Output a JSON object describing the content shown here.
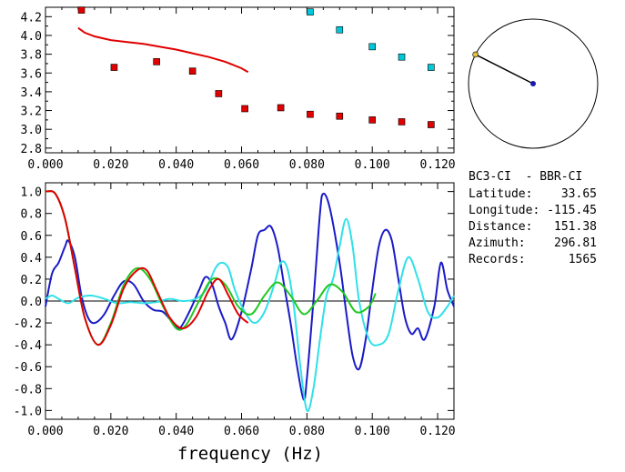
{
  "station": {
    "pair": "BC3-CI  - BBR-CI",
    "lines": [
      {
        "label": "Latitude:",
        "value": "33.65"
      },
      {
        "label": "Longitude:",
        "value": "-115.45"
      },
      {
        "label": "Distance:",
        "value": "151.38"
      },
      {
        "label": "Azimuth:",
        "value": "296.81"
      },
      {
        "label": "Records:",
        "value": "1565"
      }
    ]
  },
  "compass": {
    "azimuth_deg": 296.81,
    "center_color": "#1a1aa8",
    "tip_color": "#e0c040"
  },
  "chart_data": [
    {
      "type": "scatter",
      "title": "",
      "xlabel": "",
      "ylabel": "",
      "xlim": [
        0.0,
        0.125
      ],
      "ylim": [
        2.75,
        4.3
      ],
      "x_ticks": [
        "0.000",
        "0.020",
        "0.040",
        "0.060",
        "0.080",
        "0.100",
        "0.120"
      ],
      "y_ticks": [
        "2.8",
        "3.0",
        "3.2",
        "3.4",
        "3.6",
        "3.8",
        "4.0",
        "4.2"
      ],
      "series": [
        {
          "color": "#e00000",
          "kind": "markers",
          "x": [
            0.011,
            0.021,
            0.034,
            0.045,
            0.053,
            0.061,
            0.072,
            0.081,
            0.09,
            0.1,
            0.109,
            0.118
          ],
          "y": [
            4.27,
            3.66,
            3.72,
            3.62,
            3.38,
            3.22,
            3.23,
            3.16,
            3.14,
            3.1,
            3.08,
            3.05
          ]
        },
        {
          "color": "#00c8d8",
          "kind": "markers",
          "x": [
            0.081,
            0.09,
            0.1,
            0.109,
            0.118
          ],
          "y": [
            4.25,
            4.06,
            3.88,
            3.77,
            3.66
          ]
        },
        {
          "color": "#e00000",
          "kind": "line",
          "x": [
            0.01,
            0.012,
            0.015,
            0.02,
            0.025,
            0.03,
            0.035,
            0.04,
            0.045,
            0.05,
            0.055,
            0.06,
            0.062
          ],
          "y": [
            4.08,
            4.03,
            3.99,
            3.95,
            3.93,
            3.91,
            3.88,
            3.85,
            3.81,
            3.77,
            3.72,
            3.65,
            3.61
          ]
        }
      ]
    },
    {
      "type": "line",
      "title": "",
      "xlabel": "frequency (Hz)",
      "ylabel": "",
      "xlim": [
        0.0,
        0.125
      ],
      "ylim": [
        -1.08,
        1.08
      ],
      "x_ticks": [
        "0.000",
        "0.020",
        "0.040",
        "0.060",
        "0.080",
        "0.100",
        "0.120"
      ],
      "y_ticks": [
        "1.0",
        "0.8",
        "0.6",
        "0.4",
        "0.2",
        "0.0",
        "-0.2",
        "-0.4",
        "-0.6",
        "-0.8",
        "-1.0"
      ],
      "series": [
        {
          "color": "#1a1ac8",
          "x": [
            0.0,
            0.002,
            0.004,
            0.006,
            0.007,
            0.009,
            0.011,
            0.013,
            0.015,
            0.018,
            0.021,
            0.024,
            0.027,
            0.03,
            0.033,
            0.036,
            0.039,
            0.041,
            0.044,
            0.047,
            0.049,
            0.051,
            0.053,
            0.055,
            0.057,
            0.06,
            0.063,
            0.065,
            0.067,
            0.069,
            0.071,
            0.073,
            0.075,
            0.077,
            0.079,
            0.08,
            0.082,
            0.084,
            0.085,
            0.087,
            0.09,
            0.092,
            0.094,
            0.096,
            0.098,
            0.1,
            0.102,
            0.104,
            0.106,
            0.108,
            0.11,
            0.112,
            0.114,
            0.116,
            0.119,
            0.121,
            0.123,
            0.125
          ],
          "y": [
            -0.05,
            0.25,
            0.35,
            0.5,
            0.55,
            0.4,
            0.05,
            -0.15,
            -0.2,
            -0.12,
            0.05,
            0.18,
            0.15,
            0.0,
            -0.08,
            -0.1,
            -0.2,
            -0.25,
            -0.1,
            0.1,
            0.22,
            0.15,
            -0.05,
            -0.2,
            -0.35,
            -0.1,
            0.3,
            0.6,
            0.65,
            0.68,
            0.5,
            0.15,
            -0.2,
            -0.6,
            -0.9,
            -0.7,
            0.0,
            0.8,
            0.98,
            0.85,
            0.35,
            -0.1,
            -0.5,
            -0.62,
            -0.35,
            0.1,
            0.5,
            0.65,
            0.55,
            0.2,
            -0.15,
            -0.3,
            -0.25,
            -0.35,
            -0.05,
            0.35,
            0.1,
            -0.05
          ]
        },
        {
          "color": "#30e0e8",
          "x": [
            0.0,
            0.002,
            0.004,
            0.007,
            0.01,
            0.014,
            0.018,
            0.022,
            0.026,
            0.03,
            0.034,
            0.038,
            0.042,
            0.046,
            0.049,
            0.052,
            0.054,
            0.056,
            0.058,
            0.061,
            0.064,
            0.067,
            0.07,
            0.072,
            0.074,
            0.076,
            0.078,
            0.08,
            0.082,
            0.084,
            0.086,
            0.088,
            0.09,
            0.092,
            0.094,
            0.096,
            0.099,
            0.102,
            0.105,
            0.108,
            0.111,
            0.114,
            0.117,
            0.12,
            0.123,
            0.125
          ],
          "y": [
            0.02,
            0.05,
            0.02,
            -0.02,
            0.03,
            0.05,
            0.02,
            -0.02,
            -0.01,
            -0.02,
            -0.01,
            0.02,
            0.0,
            0.02,
            0.1,
            0.3,
            0.35,
            0.3,
            0.1,
            -0.1,
            -0.2,
            -0.1,
            0.15,
            0.35,
            0.3,
            -0.05,
            -0.6,
            -1.0,
            -0.8,
            -0.35,
            0.05,
            0.2,
            0.5,
            0.75,
            0.5,
            0.0,
            -0.35,
            -0.4,
            -0.3,
            0.1,
            0.4,
            0.2,
            -0.1,
            -0.15,
            -0.05,
            0.05
          ]
        },
        {
          "color": "#20c820",
          "x": [
            0.0,
            0.003,
            0.006,
            0.009,
            0.012,
            0.016,
            0.02,
            0.024,
            0.028,
            0.032,
            0.036,
            0.04,
            0.043,
            0.047,
            0.051,
            0.055,
            0.059,
            0.063,
            0.067,
            0.071,
            0.075,
            0.079,
            0.083,
            0.087,
            0.091,
            0.095,
            0.099,
            0.101
          ],
          "y": [
            1.0,
            0.98,
            0.75,
            0.3,
            -0.15,
            -0.4,
            -0.2,
            0.15,
            0.3,
            0.2,
            -0.05,
            -0.25,
            -0.22,
            0.0,
            0.2,
            0.15,
            -0.05,
            -0.12,
            0.05,
            0.17,
            0.05,
            -0.12,
            0.0,
            0.15,
            0.08,
            -0.1,
            -0.05,
            0.07
          ]
        },
        {
          "color": "#e00000",
          "x": [
            0.0,
            0.003,
            0.006,
            0.009,
            0.012,
            0.016,
            0.02,
            0.024,
            0.028,
            0.031,
            0.034,
            0.038,
            0.042,
            0.046,
            0.05,
            0.053,
            0.056,
            0.059,
            0.062
          ],
          "y": [
            1.0,
            0.98,
            0.75,
            0.3,
            -0.15,
            -0.4,
            -0.22,
            0.12,
            0.28,
            0.28,
            0.1,
            -0.15,
            -0.25,
            -0.15,
            0.1,
            0.2,
            0.05,
            -0.12,
            -0.2
          ]
        }
      ]
    }
  ]
}
